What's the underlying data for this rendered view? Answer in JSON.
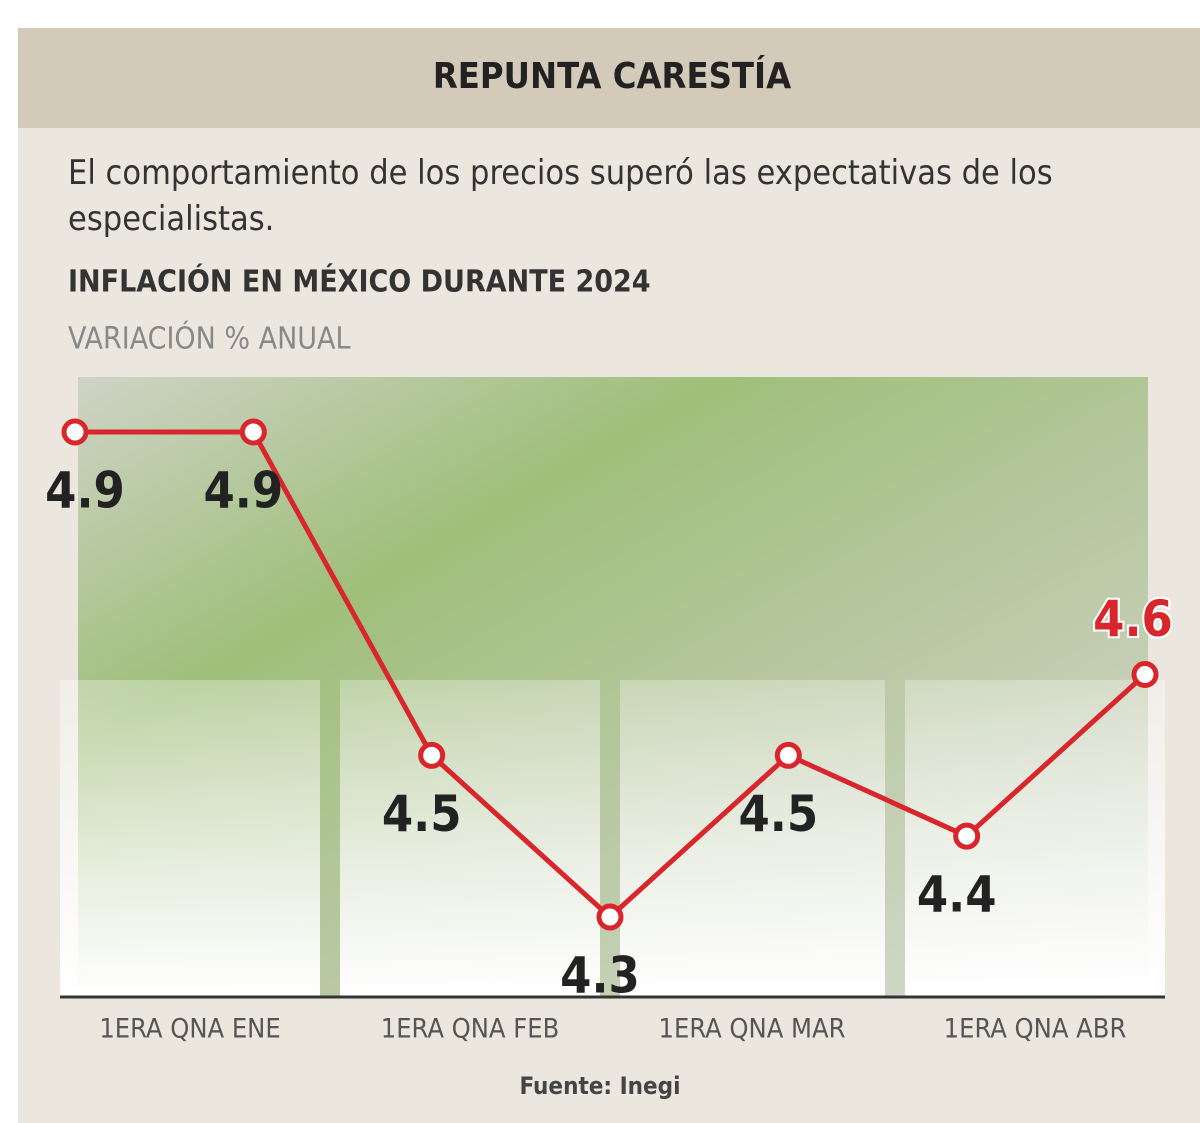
{
  "header": "REPUNTA CARESTÍA",
  "subtitle": "El comportamiento de los precios superó las expectativas de los especialistas.",
  "chart_data": {
    "type": "line",
    "title": "INFLACIÓN EN MÉXICO DURANTE 2024",
    "y_label": "VARIACIÓN % ANUAL",
    "categories": [
      "1ERA QNA ENE",
      null,
      "1ERA QNA FEB",
      null,
      "1ERA QNA MAR",
      null,
      "1ERA QNA ABR"
    ],
    "values": [
      4.9,
      4.9,
      4.5,
      4.3,
      4.5,
      4.4,
      4.6
    ],
    "color": "#d9262c"
  },
  "source": "Fuente: Inegi"
}
